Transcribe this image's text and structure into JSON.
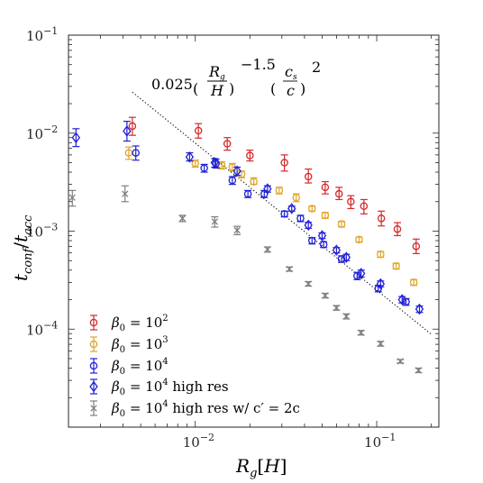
{
  "chart_data": {
    "type": "scatter",
    "xscale": "log",
    "yscale": "log",
    "xlim": [
      0.002,
      0.22
    ],
    "ylim": [
      1e-05,
      0.1
    ],
    "xlabel": "R_g[H]",
    "ylabel": "t_conf/t_acc",
    "grid": false,
    "legend_position": "bottom-left",
    "x_ticks": [
      {
        "base": "10",
        "exp": "−2",
        "value": 0.01
      },
      {
        "base": "10",
        "exp": "−1",
        "value": 0.1
      }
    ],
    "y_ticks": [
      {
        "base": "10",
        "exp": "−1",
        "value": 0.1
      },
      {
        "base": "10",
        "exp": "−2",
        "value": 0.01
      },
      {
        "base": "10",
        "exp": "−3",
        "value": 0.001
      },
      {
        "base": "10",
        "exp": "−4",
        "value": 0.0001
      }
    ],
    "annotation": {
      "text": "0.025 (R_g/H)^−1.5 (c_s/c)^2",
      "coef": "0.025",
      "power1": "−1.5",
      "power2": "2",
      "num1": "R",
      "num1_sub": "g",
      "den1": "H",
      "num2": "c",
      "num2_sub": "s",
      "den2": "c"
    },
    "fit_line": {
      "x": [
        0.0045,
        0.2
      ],
      "y": [
        0.0262,
        8.85e-05
      ],
      "style": "dotted",
      "color": "#000000"
    },
    "series": [
      {
        "name": "β0 = 10^2",
        "label_main": "β",
        "label_sub": "0",
        "label_eq": " = 10",
        "label_exp": "2",
        "label_suffix": "",
        "color": "#d62728",
        "marker": "circle",
        "points": [
          {
            "x": 0.0045,
            "y": 0.0118,
            "lo": 0.0095,
            "hi": 0.0145
          },
          {
            "x": 0.0104,
            "y": 0.0106,
            "lo": 0.0089,
            "hi": 0.0125
          },
          {
            "x": 0.015,
            "y": 0.0078,
            "lo": 0.0067,
            "hi": 0.009
          },
          {
            "x": 0.02,
            "y": 0.0059,
            "lo": 0.0052,
            "hi": 0.0067
          },
          {
            "x": 0.031,
            "y": 0.005,
            "lo": 0.0041,
            "hi": 0.006
          },
          {
            "x": 0.042,
            "y": 0.0036,
            "lo": 0.0031,
            "hi": 0.0043
          },
          {
            "x": 0.052,
            "y": 0.0028,
            "lo": 0.0024,
            "hi": 0.0032
          },
          {
            "x": 0.062,
            "y": 0.0024,
            "lo": 0.0021,
            "hi": 0.0028
          },
          {
            "x": 0.072,
            "y": 0.002,
            "lo": 0.0017,
            "hi": 0.0023
          },
          {
            "x": 0.085,
            "y": 0.0018,
            "lo": 0.0015,
            "hi": 0.0021
          },
          {
            "x": 0.106,
            "y": 0.00135,
            "lo": 0.00113,
            "hi": 0.0016
          },
          {
            "x": 0.13,
            "y": 0.00105,
            "lo": 0.0009,
            "hi": 0.00122
          },
          {
            "x": 0.165,
            "y": 0.0007,
            "lo": 0.00059,
            "hi": 0.00083
          }
        ]
      },
      {
        "name": "β0 = 10^3",
        "label_main": "β",
        "label_sub": "0",
        "label_eq": " = 10",
        "label_exp": "3",
        "label_suffix": "",
        "color": "#e0a526",
        "marker": "circle",
        "points": [
          {
            "x": 0.0043,
            "y": 0.0063,
            "lo": 0.0054,
            "hi": 0.0072
          },
          {
            "x": 0.01,
            "y": 0.0049,
            "lo": 0.0045,
            "hi": 0.0053
          },
          {
            "x": 0.014,
            "y": 0.0047,
            "lo": 0.0043,
            "hi": 0.0051
          },
          {
            "x": 0.016,
            "y": 0.0045,
            "lo": 0.0041,
            "hi": 0.0049
          },
          {
            "x": 0.018,
            "y": 0.0038,
            "lo": 0.0035,
            "hi": 0.0041
          },
          {
            "x": 0.021,
            "y": 0.0032,
            "lo": 0.003,
            "hi": 0.0035
          },
          {
            "x": 0.029,
            "y": 0.0026,
            "lo": 0.0024,
            "hi": 0.0028
          },
          {
            "x": 0.036,
            "y": 0.0022,
            "lo": 0.002,
            "hi": 0.0024
          },
          {
            "x": 0.044,
            "y": 0.0017,
            "lo": 0.0016,
            "hi": 0.0018
          },
          {
            "x": 0.052,
            "y": 0.00145,
            "lo": 0.00135,
            "hi": 0.00155
          },
          {
            "x": 0.064,
            "y": 0.00118,
            "lo": 0.0011,
            "hi": 0.00126
          },
          {
            "x": 0.08,
            "y": 0.00082,
            "lo": 0.00077,
            "hi": 0.00087
          },
          {
            "x": 0.105,
            "y": 0.00058,
            "lo": 0.00054,
            "hi": 0.00062
          },
          {
            "x": 0.128,
            "y": 0.00044,
            "lo": 0.00041,
            "hi": 0.00047
          },
          {
            "x": 0.16,
            "y": 0.0003,
            "lo": 0.00028,
            "hi": 0.00032
          }
        ]
      },
      {
        "name": "β0 = 10^4",
        "label_main": "β",
        "label_sub": "0",
        "label_eq": " = 10",
        "label_exp": "4",
        "label_suffix": "",
        "color": "#1f1fd6",
        "marker": "circle",
        "points": [
          {
            "x": 0.0047,
            "y": 0.0063,
            "lo": 0.0053,
            "hi": 0.0074
          },
          {
            "x": 0.0112,
            "y": 0.0044,
            "lo": 0.004,
            "hi": 0.0048
          },
          {
            "x": 0.013,
            "y": 0.0049,
            "lo": 0.0044,
            "hi": 0.0054
          },
          {
            "x": 0.016,
            "y": 0.0033,
            "lo": 0.003,
            "hi": 0.0036
          },
          {
            "x": 0.0195,
            "y": 0.0024,
            "lo": 0.0022,
            "hi": 0.0026
          },
          {
            "x": 0.024,
            "y": 0.0024,
            "lo": 0.0022,
            "hi": 0.0026
          },
          {
            "x": 0.031,
            "y": 0.0015,
            "lo": 0.0014,
            "hi": 0.0016
          },
          {
            "x": 0.038,
            "y": 0.00135,
            "lo": 0.00125,
            "hi": 0.00145
          },
          {
            "x": 0.044,
            "y": 0.0008,
            "lo": 0.00074,
            "hi": 0.00086
          },
          {
            "x": 0.051,
            "y": 0.00073,
            "lo": 0.00068,
            "hi": 0.00078
          },
          {
            "x": 0.064,
            "y": 0.00052,
            "lo": 0.00048,
            "hi": 0.00056
          },
          {
            "x": 0.078,
            "y": 0.00035,
            "lo": 0.00032,
            "hi": 0.00038
          },
          {
            "x": 0.102,
            "y": 0.00026,
            "lo": 0.00024,
            "hi": 0.00028
          },
          {
            "x": 0.145,
            "y": 0.00019,
            "lo": 0.000175,
            "hi": 0.000205
          }
        ]
      },
      {
        "name": "β0 = 10^4 high res",
        "label_main": "β",
        "label_sub": "0",
        "label_eq": " = 10",
        "label_exp": "4",
        "label_suffix": " high res",
        "color": "#1f1fd6",
        "marker": "diamond",
        "points": [
          {
            "x": 0.0022,
            "y": 0.009,
            "lo": 0.0073,
            "hi": 0.0111
          },
          {
            "x": 0.0042,
            "y": 0.0105,
            "lo": 0.0083,
            "hi": 0.0132
          },
          {
            "x": 0.0093,
            "y": 0.0057,
            "lo": 0.0052,
            "hi": 0.0063
          },
          {
            "x": 0.0128,
            "y": 0.005,
            "lo": 0.0045,
            "hi": 0.0055
          },
          {
            "x": 0.017,
            "y": 0.0041,
            "lo": 0.0037,
            "hi": 0.0045
          },
          {
            "x": 0.025,
            "y": 0.0027,
            "lo": 0.0025,
            "hi": 0.0029
          },
          {
            "x": 0.034,
            "y": 0.0017,
            "lo": 0.0016,
            "hi": 0.0018
          },
          {
            "x": 0.042,
            "y": 0.00115,
            "lo": 0.00107,
            "hi": 0.00123
          },
          {
            "x": 0.05,
            "y": 0.0009,
            "lo": 0.00084,
            "hi": 0.00096
          },
          {
            "x": 0.06,
            "y": 0.00064,
            "lo": 0.0006,
            "hi": 0.00068
          },
          {
            "x": 0.068,
            "y": 0.00054,
            "lo": 0.0005,
            "hi": 0.00058
          },
          {
            "x": 0.082,
            "y": 0.00037,
            "lo": 0.00034,
            "hi": 0.0004
          },
          {
            "x": 0.105,
            "y": 0.00029,
            "lo": 0.00027,
            "hi": 0.00031
          },
          {
            "x": 0.138,
            "y": 0.0002,
            "lo": 0.000185,
            "hi": 0.000215
          },
          {
            "x": 0.172,
            "y": 0.00016,
            "lo": 0.000148,
            "hi": 0.000172
          }
        ]
      },
      {
        "name": "β0 = 10^4 high res w/ c′ = 2c",
        "label_main": "β",
        "label_sub": "0",
        "label_eq": " = 10",
        "label_exp": "4",
        "label_suffix": " high res w/ c′ = 2c",
        "color": "#7f7f7f",
        "marker": "x",
        "points": [
          {
            "x": 0.0021,
            "y": 0.0022,
            "lo": 0.0018,
            "hi": 0.0026
          },
          {
            "x": 0.0041,
            "y": 0.0024,
            "lo": 0.002,
            "hi": 0.0029
          },
          {
            "x": 0.0085,
            "y": 0.00135,
            "lo": 0.00125,
            "hi": 0.00145
          },
          {
            "x": 0.0128,
            "y": 0.00125,
            "lo": 0.0011,
            "hi": 0.0014
          },
          {
            "x": 0.017,
            "y": 0.00102,
            "lo": 0.00092,
            "hi": 0.00112
          },
          {
            "x": 0.025,
            "y": 0.00065,
            "lo": 0.00061,
            "hi": 0.00069
          },
          {
            "x": 0.033,
            "y": 0.00041,
            "lo": 0.00039,
            "hi": 0.00043
          },
          {
            "x": 0.042,
            "y": 0.00029,
            "lo": 0.000275,
            "hi": 0.000305
          },
          {
            "x": 0.052,
            "y": 0.00022,
            "lo": 0.000208,
            "hi": 0.000232
          },
          {
            "x": 0.06,
            "y": 0.000165,
            "lo": 0.000156,
            "hi": 0.000174
          },
          {
            "x": 0.068,
            "y": 0.000135,
            "lo": 0.000127,
            "hi": 0.000143
          },
          {
            "x": 0.082,
            "y": 9.2e-05,
            "lo": 8.7e-05,
            "hi": 9.7e-05
          },
          {
            "x": 0.105,
            "y": 7.1e-05,
            "lo": 6.7e-05,
            "hi": 7.5e-05
          },
          {
            "x": 0.135,
            "y": 4.7e-05,
            "lo": 4.5e-05,
            "hi": 4.9e-05
          },
          {
            "x": 0.17,
            "y": 3.8e-05,
            "lo": 3.6e-05,
            "hi": 4e-05
          }
        ]
      }
    ]
  }
}
